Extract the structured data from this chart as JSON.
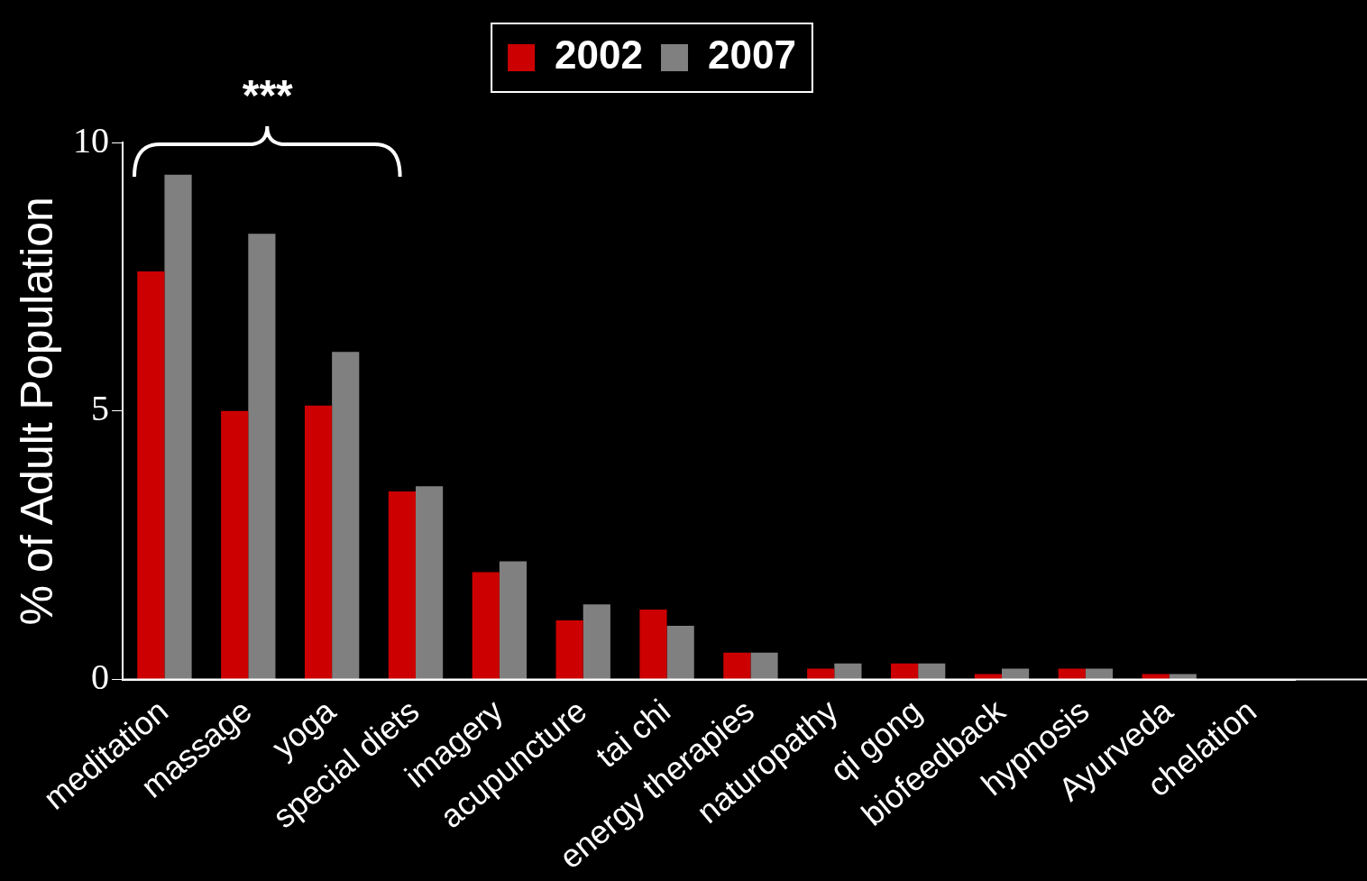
{
  "chart_data": {
    "type": "bar",
    "ylabel": "% of Adult Population",
    "categories": [
      "meditation",
      "massage",
      "yoga",
      "special diets",
      "imagery",
      "acupuncture",
      "tai chi",
      "energy therapies",
      "naturopathy",
      "qi gong",
      "biofeedback",
      "hypnosis",
      "Ayurveda",
      "chelation"
    ],
    "series": [
      {
        "name": "2002",
        "color": "#cc0000",
        "values": [
          7.6,
          5.0,
          5.1,
          3.5,
          2.0,
          1.1,
          1.3,
          0.5,
          0.2,
          0.3,
          0.1,
          0.2,
          0.1,
          0
        ]
      },
      {
        "name": "2007",
        "color": "#808080",
        "values": [
          9.4,
          8.3,
          6.1,
          3.6,
          2.2,
          1.4,
          1.0,
          0.5,
          0.3,
          0.3,
          0.2,
          0.2,
          0.1,
          0
        ]
      }
    ],
    "ylim": [
      0,
      10
    ],
    "yticks": [
      0,
      5,
      10
    ],
    "grid": false,
    "legend": "top",
    "annotations": [
      "***"
    ]
  }
}
